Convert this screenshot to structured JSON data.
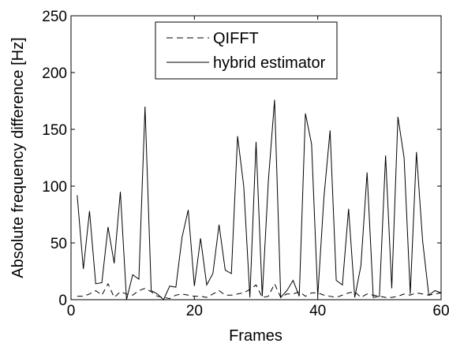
{
  "chart_data": {
    "type": "line",
    "xlabel": "Frames",
    "ylabel": "Absolute frequency difference [Hz]",
    "xlim": [
      0,
      60
    ],
    "ylim": [
      0,
      250
    ],
    "xticks": [
      "0",
      "20",
      "40",
      "60"
    ],
    "yticks": [
      "0",
      "50",
      "100",
      "150",
      "200",
      "250"
    ],
    "grid": false,
    "legend_position": "top-center",
    "x": [
      1,
      2,
      3,
      4,
      5,
      6,
      7,
      8,
      9,
      10,
      11,
      12,
      13,
      14,
      15,
      16,
      17,
      18,
      19,
      20,
      21,
      22,
      23,
      24,
      25,
      26,
      27,
      28,
      29,
      30,
      31,
      32,
      33,
      34,
      35,
      36,
      37,
      38,
      39,
      40,
      41,
      42,
      43,
      44,
      45,
      46,
      47,
      48,
      49,
      50,
      51,
      52,
      53,
      54,
      55,
      56,
      57,
      58,
      59,
      60
    ],
    "series": [
      {
        "name": "QIFFT",
        "style": "dashed",
        "values": [
          3,
          3,
          5,
          8,
          4,
          14,
          2,
          7,
          5,
          4,
          8,
          10,
          7,
          3,
          2,
          1,
          4,
          5,
          4,
          3,
          3,
          2,
          5,
          8,
          4,
          4,
          5,
          6,
          9,
          13,
          2,
          3,
          14,
          2,
          5,
          5,
          7,
          3,
          6,
          6,
          4,
          3,
          2,
          4,
          6,
          7,
          2,
          5,
          4,
          3,
          2,
          2,
          3,
          5,
          4,
          6,
          5,
          4,
          5,
          6
        ]
      },
      {
        "name": "hybrid estimator",
        "style": "solid",
        "values": [
          92,
          27,
          78,
          14,
          15,
          64,
          32,
          95,
          0,
          22,
          18,
          170,
          8,
          5,
          0,
          12,
          11,
          55,
          79,
          12,
          54,
          13,
          23,
          66,
          26,
          23,
          144,
          100,
          2,
          139,
          3,
          105,
          176,
          2,
          8,
          17,
          3,
          164,
          137,
          3,
          90,
          149,
          17,
          13,
          80,
          2,
          30,
          112,
          2,
          3,
          127,
          10,
          161,
          125,
          5,
          130,
          52,
          4,
          8,
          6
        ]
      }
    ]
  }
}
